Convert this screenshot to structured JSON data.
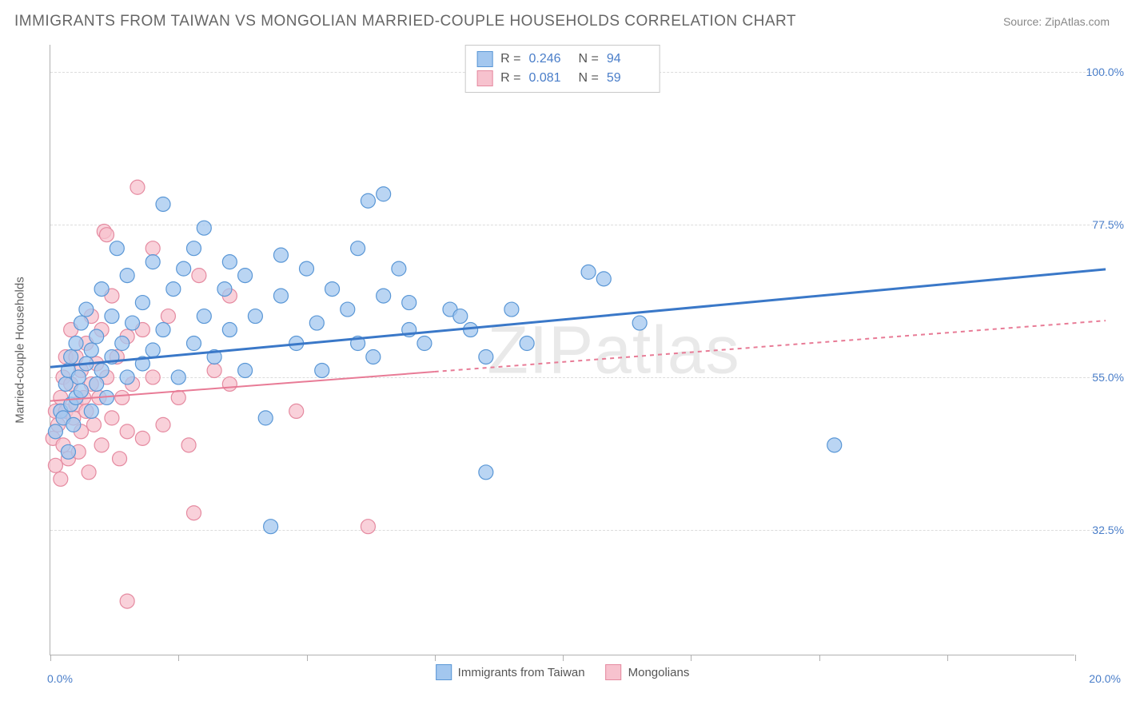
{
  "title": "IMMIGRANTS FROM TAIWAN VS MONGOLIAN MARRIED-COUPLE HOUSEHOLDS CORRELATION CHART",
  "source": "Source: ZipAtlas.com",
  "watermark": "ZIPatlas",
  "y_axis_label": "Married-couple Households",
  "chart": {
    "type": "scatter",
    "xlim": [
      0,
      20
    ],
    "ylim": [
      14,
      104
    ],
    "x_ticks": [
      0,
      2.5,
      5,
      7.5,
      10,
      12.5,
      15,
      17.5,
      20
    ],
    "x_tick_labels": {
      "0": "0.0%",
      "20": "20.0%"
    },
    "y_gridlines": [
      32.5,
      55.0,
      77.5,
      100.0
    ],
    "y_tick_labels": [
      "32.5%",
      "55.0%",
      "77.5%",
      "100.0%"
    ],
    "grid_color": "#dcdcdc",
    "axis_color": "#b0b0b0",
    "background_color": "#ffffff",
    "label_color_axis": "#606060",
    "label_color_tick": "#4a7ec9",
    "series": [
      {
        "name": "Immigrants from Taiwan",
        "marker_color_fill": "#a3c7ef",
        "marker_color_stroke": "#5a97d6",
        "marker_radius": 9,
        "marker_opacity": 0.75,
        "line_color": "#3a78c8",
        "line_width": 3,
        "line_dash": "none",
        "R": "0.246",
        "N": "94",
        "trend": {
          "x1": 0,
          "y1": 56.5,
          "x2": 20,
          "y2": 70.5,
          "x_extent": 20
        },
        "points": [
          [
            0.1,
            47
          ],
          [
            0.2,
            50
          ],
          [
            0.25,
            49
          ],
          [
            0.3,
            54
          ],
          [
            0.35,
            44
          ],
          [
            0.35,
            56
          ],
          [
            0.4,
            51
          ],
          [
            0.4,
            58
          ],
          [
            0.45,
            48
          ],
          [
            0.5,
            52
          ],
          [
            0.5,
            60
          ],
          [
            0.55,
            55
          ],
          [
            0.6,
            53
          ],
          [
            0.6,
            63
          ],
          [
            0.7,
            57
          ],
          [
            0.7,
            65
          ],
          [
            0.8,
            50
          ],
          [
            0.8,
            59
          ],
          [
            0.9,
            61
          ],
          [
            0.9,
            54
          ],
          [
            1.0,
            56
          ],
          [
            1.0,
            68
          ],
          [
            1.1,
            52
          ],
          [
            1.2,
            64
          ],
          [
            1.2,
            58
          ],
          [
            1.3,
            74
          ],
          [
            1.4,
            60
          ],
          [
            1.5,
            55
          ],
          [
            1.5,
            70
          ],
          [
            1.6,
            63
          ],
          [
            1.8,
            57
          ],
          [
            1.8,
            66
          ],
          [
            2.0,
            59
          ],
          [
            2.0,
            72
          ],
          [
            2.2,
            80.5
          ],
          [
            2.2,
            62
          ],
          [
            2.4,
            68
          ],
          [
            2.5,
            55
          ],
          [
            2.6,
            71
          ],
          [
            2.8,
            60
          ],
          [
            2.8,
            74
          ],
          [
            3.0,
            64
          ],
          [
            3.0,
            77
          ],
          [
            3.2,
            58
          ],
          [
            3.4,
            68
          ],
          [
            3.5,
            72
          ],
          [
            3.5,
            62
          ],
          [
            3.8,
            70
          ],
          [
            3.8,
            56
          ],
          [
            4.0,
            64
          ],
          [
            4.2,
            49
          ],
          [
            4.3,
            33
          ],
          [
            4.5,
            67
          ],
          [
            4.5,
            73
          ],
          [
            4.8,
            60
          ],
          [
            5.0,
            71
          ],
          [
            5.2,
            63
          ],
          [
            5.3,
            56
          ],
          [
            5.5,
            68
          ],
          [
            5.8,
            65
          ],
          [
            6.0,
            74
          ],
          [
            6.0,
            60
          ],
          [
            6.2,
            81
          ],
          [
            6.3,
            58
          ],
          [
            6.5,
            67
          ],
          [
            6.5,
            82
          ],
          [
            6.8,
            71
          ],
          [
            7.0,
            66
          ],
          [
            7.0,
            62
          ],
          [
            7.3,
            60
          ],
          [
            7.8,
            65
          ],
          [
            8.0,
            64
          ],
          [
            8.2,
            62
          ],
          [
            8.5,
            58
          ],
          [
            8.5,
            41
          ],
          [
            9.0,
            65
          ],
          [
            9.3,
            60
          ],
          [
            10.5,
            70.5
          ],
          [
            10.8,
            69.5
          ],
          [
            11.5,
            63
          ],
          [
            15.3,
            45
          ]
        ]
      },
      {
        "name": "Mongolians",
        "marker_color_fill": "#f7c2ce",
        "marker_color_stroke": "#e58aa0",
        "marker_radius": 9,
        "marker_opacity": 0.75,
        "line_color": "#e87b96",
        "line_width": 2,
        "line_dash": "5,5",
        "R": "0.081",
        "N": "59",
        "trend": {
          "x1": 0,
          "y1": 51.5,
          "x2": 20,
          "y2": 63.0,
          "x_extent_solid": 7.5
        },
        "points": [
          [
            0.05,
            46
          ],
          [
            0.1,
            42
          ],
          [
            0.1,
            50
          ],
          [
            0.15,
            48
          ],
          [
            0.2,
            40
          ],
          [
            0.2,
            52
          ],
          [
            0.25,
            45
          ],
          [
            0.25,
            55
          ],
          [
            0.3,
            50
          ],
          [
            0.3,
            58
          ],
          [
            0.35,
            43
          ],
          [
            0.4,
            54
          ],
          [
            0.4,
            62
          ],
          [
            0.45,
            49
          ],
          [
            0.5,
            51
          ],
          [
            0.5,
            58
          ],
          [
            0.55,
            44
          ],
          [
            0.6,
            56
          ],
          [
            0.6,
            47
          ],
          [
            0.65,
            52
          ],
          [
            0.7,
            60
          ],
          [
            0.7,
            50
          ],
          [
            0.75,
            41
          ],
          [
            0.8,
            54
          ],
          [
            0.8,
            64
          ],
          [
            0.85,
            48
          ],
          [
            0.9,
            57
          ],
          [
            0.95,
            52
          ],
          [
            1.0,
            62
          ],
          [
            1.0,
            45
          ],
          [
            1.05,
            76.5
          ],
          [
            1.1,
            55
          ],
          [
            1.1,
            76
          ],
          [
            1.2,
            49
          ],
          [
            1.2,
            67
          ],
          [
            1.3,
            58
          ],
          [
            1.35,
            43
          ],
          [
            1.4,
            52
          ],
          [
            1.5,
            47
          ],
          [
            1.5,
            61
          ],
          [
            1.6,
            54
          ],
          [
            1.7,
            83
          ],
          [
            1.8,
            46
          ],
          [
            1.8,
            62
          ],
          [
            2.0,
            55
          ],
          [
            2.0,
            74
          ],
          [
            2.2,
            48
          ],
          [
            2.3,
            64
          ],
          [
            2.5,
            52
          ],
          [
            2.7,
            45
          ],
          [
            2.8,
            35
          ],
          [
            2.9,
            70
          ],
          [
            3.2,
            56
          ],
          [
            3.5,
            67
          ],
          [
            3.5,
            54
          ],
          [
            4.8,
            50
          ],
          [
            6.2,
            33
          ],
          [
            1.5,
            22
          ]
        ]
      }
    ]
  },
  "legend_labels": {
    "r_prefix": "R =",
    "n_prefix": "N =",
    "series1": "Immigrants from Taiwan",
    "series2": "Mongolians"
  }
}
